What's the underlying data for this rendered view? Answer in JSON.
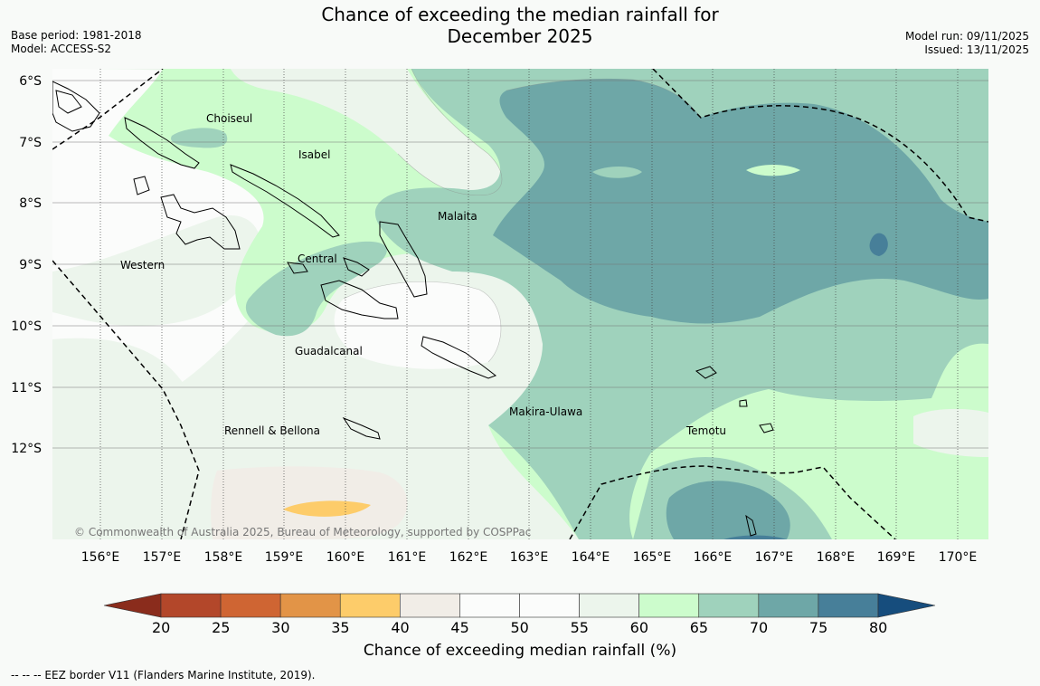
{
  "title": {
    "line1": "Chance of exceeding the median rainfall for",
    "line2": "December 2025"
  },
  "info_left": {
    "base_period": "Base period: 1981-2018",
    "model": "Model: ACCESS-S2"
  },
  "info_right": {
    "model_run": "Model run: 09/11/2025",
    "issued": "Issued: 13/11/2025"
  },
  "lat_labels": [
    "6°S",
    "7°S",
    "8°S",
    "9°S",
    "10°S",
    "11°S",
    "12°S"
  ],
  "lon_labels": [
    "156°E",
    "157°E",
    "158°E",
    "159°E",
    "160°E",
    "161°E",
    "162°E",
    "163°E",
    "164°E",
    "165°E",
    "166°E",
    "167°E",
    "168°E",
    "169°E",
    "170°E"
  ],
  "places": [
    "Choiseul",
    "Isabel",
    "Malaita",
    "Western",
    "Central",
    "Guadalcanal",
    "Makira-Ulawa",
    "Rennell & Bellona",
    "Temotu"
  ],
  "copyright": "© Commonwealth of Australia 2025, Bureau of Meteorology, supported by COSPPac",
  "colorbar": {
    "ticks": [
      "20",
      "25",
      "30",
      "35",
      "40",
      "45",
      "50",
      "55",
      "60",
      "65",
      "70",
      "75",
      "80"
    ],
    "colors": [
      "#b3472a",
      "#cf6533",
      "#e29447",
      "#fdcc6a",
      "#f1ede7",
      "#fbfcfb",
      "#fbfcfb",
      "#ecf5ec",
      "#ccfccc",
      "#9fd2bc",
      "#6ea7a7",
      "#477f99"
    ],
    "under_color": "#8a2c1c",
    "over_color": "#164d7d",
    "label": "Chance of exceeding median rainfall (%)"
  },
  "footnote": "--  --  -- EEZ border V11 (Flanders Marine Institute, 2019)."
}
